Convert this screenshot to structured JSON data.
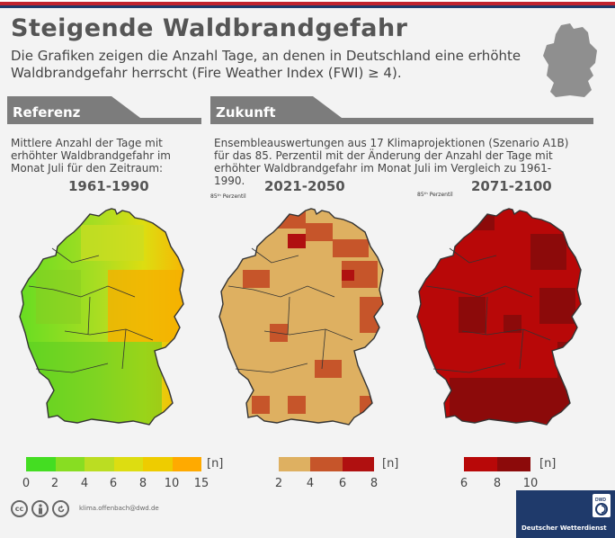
{
  "title": "Steigende Waldbrandgefahr",
  "subtitle": "Die Grafiken zeigen die Anzahl Tage, an denen in Deutschland eine erhöhte Waldbrandgefahr herrscht (Fire Weather Index (FWI) ≥ 4).",
  "sections": {
    "referenz": {
      "label": "Referenz",
      "description": "Mittlere Anzahl der Tage mit erhöhter Waldbrandgefahr im Monat Juli für den Zeitraum:"
    },
    "zukunft": {
      "label": "Zukunft",
      "description": "Ensembleauswertungen aus 17 Klimaprojektionen (Szenario A1B) für das 85. Perzentil mit der Änderung der Anzahl der Tage mit erhöhter Waldbrandgefahr im Monat Juli im Vergleich zu 1961-1990."
    }
  },
  "maps": [
    {
      "period": "1961-1990",
      "percentile_note": "",
      "legend_colors": [
        "#44dd22",
        "#88dd22",
        "#bbdd22",
        "#dddd11",
        "#eecc00",
        "#ffaa00"
      ],
      "legend_ticks": [
        "0",
        "2",
        "4",
        "6",
        "8",
        "10",
        "15"
      ],
      "unit": "[n]"
    },
    {
      "period": "2021-2050",
      "percentile_note": "85ᵗʰ Perzentil",
      "legend_colors": [
        "#deb061",
        "#c6552a",
        "#b01010"
      ],
      "legend_ticks": [
        "2",
        "4",
        "6",
        "8"
      ],
      "unit": "[n]"
    },
    {
      "period": "2071-2100",
      "percentile_note": "85ᵗʰ Perzentil",
      "legend_colors": [
        "#b80808",
        "#8c0a0a"
      ],
      "legend_ticks": [
        "6",
        "8",
        "10"
      ],
      "unit": "[n]"
    }
  ],
  "footer": {
    "email": "klima.offenbach@dwd.de",
    "org": "Deutscher Wetterdienst",
    "logo_text": "DWD"
  },
  "colors": {
    "brand_red": "#c0232f",
    "brand_blue": "#1f3a6b",
    "band_gray": "#7c7c7c"
  }
}
